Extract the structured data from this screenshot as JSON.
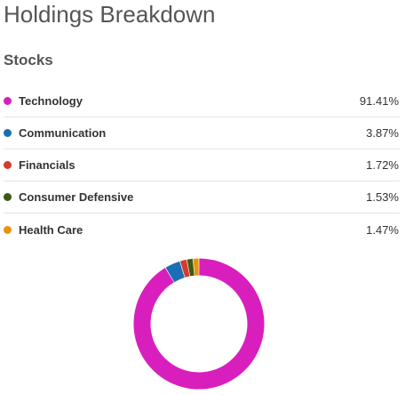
{
  "page_title": "Holdings Breakdown",
  "section_title": "Stocks",
  "holdings": [
    {
      "name": "Technology",
      "value_label": "91.41%",
      "value": 91.41,
      "color": "#d81fbd"
    },
    {
      "name": "Communication",
      "value_label": "3.87%",
      "value": 3.87,
      "color": "#1a6fb3"
    },
    {
      "name": "Financials",
      "value_label": "1.72%",
      "value": 1.72,
      "color": "#d83a2e"
    },
    {
      "name": "Consumer Defensive",
      "value_label": "1.53%",
      "value": 1.53,
      "color": "#3d5a15"
    },
    {
      "name": "Health Care",
      "value_label": "1.47%",
      "value": 1.47,
      "color": "#e8940f"
    }
  ],
  "chart_data": {
    "type": "pie",
    "style": "donut",
    "categories": [
      "Technology",
      "Communication",
      "Financials",
      "Consumer Defensive",
      "Health Care"
    ],
    "values": [
      91.41,
      3.87,
      1.72,
      1.53,
      1.47
    ],
    "colors": [
      "#d81fbd",
      "#1a6fb3",
      "#d83a2e",
      "#3d5a15",
      "#e8940f"
    ],
    "legend": "list-above"
  }
}
